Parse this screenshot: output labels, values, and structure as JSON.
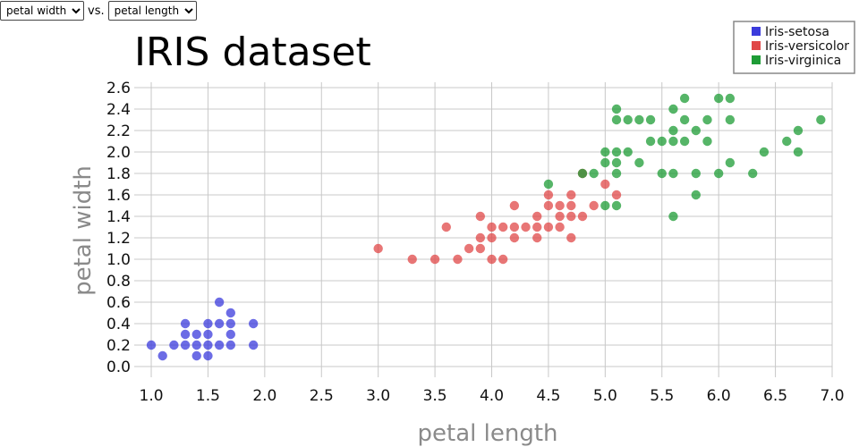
{
  "controls": {
    "y_select": {
      "selected": "petal width",
      "options": [
        "petal width"
      ]
    },
    "vs_label": "vs.",
    "x_select": {
      "selected": "petal length",
      "options": [
        "petal length"
      ]
    }
  },
  "chart_data": {
    "type": "scatter",
    "title": "IRIS dataset",
    "xlabel": "petal length",
    "ylabel": "petal width",
    "xlim": [
      0.85,
      7.0
    ],
    "ylim": [
      -0.1,
      2.65
    ],
    "xticks": [
      "1.0",
      "1.5",
      "2.0",
      "2.5",
      "3.0",
      "3.5",
      "4.0",
      "4.5",
      "5.0",
      "5.5",
      "6.0",
      "6.5",
      "7.0"
    ],
    "yticks": [
      "0.0",
      "0.2",
      "0.4",
      "0.6",
      "0.8",
      "1.0",
      "1.2",
      "1.4",
      "1.6",
      "1.8",
      "2.0",
      "2.2",
      "2.4",
      "2.6"
    ],
    "grid": true,
    "legend_position": "top-right",
    "series": [
      {
        "name": "Iris-setosa",
        "color": "#3b3bdc",
        "points": [
          [
            1.0,
            0.2
          ],
          [
            1.1,
            0.1
          ],
          [
            1.2,
            0.2
          ],
          [
            1.3,
            0.2
          ],
          [
            1.3,
            0.3
          ],
          [
            1.3,
            0.4
          ],
          [
            1.4,
            0.1
          ],
          [
            1.4,
            0.2
          ],
          [
            1.4,
            0.3
          ],
          [
            1.5,
            0.1
          ],
          [
            1.5,
            0.2
          ],
          [
            1.5,
            0.3
          ],
          [
            1.5,
            0.4
          ],
          [
            1.6,
            0.2
          ],
          [
            1.6,
            0.4
          ],
          [
            1.6,
            0.6
          ],
          [
            1.7,
            0.2
          ],
          [
            1.7,
            0.3
          ],
          [
            1.7,
            0.4
          ],
          [
            1.7,
            0.5
          ],
          [
            1.9,
            0.2
          ],
          [
            1.9,
            0.4
          ]
        ]
      },
      {
        "name": "Iris-versicolor",
        "color": "#e04848",
        "points": [
          [
            3.0,
            1.1
          ],
          [
            3.3,
            1.0
          ],
          [
            3.5,
            1.0
          ],
          [
            3.6,
            1.3
          ],
          [
            3.7,
            1.0
          ],
          [
            3.8,
            1.1
          ],
          [
            3.9,
            1.1
          ],
          [
            3.9,
            1.2
          ],
          [
            3.9,
            1.4
          ],
          [
            4.0,
            1.0
          ],
          [
            4.0,
            1.2
          ],
          [
            4.0,
            1.3
          ],
          [
            4.1,
            1.0
          ],
          [
            4.1,
            1.3
          ],
          [
            4.2,
            1.2
          ],
          [
            4.2,
            1.3
          ],
          [
            4.2,
            1.5
          ],
          [
            4.3,
            1.3
          ],
          [
            4.4,
            1.2
          ],
          [
            4.4,
            1.3
          ],
          [
            4.4,
            1.4
          ],
          [
            4.5,
            1.3
          ],
          [
            4.5,
            1.5
          ],
          [
            4.5,
            1.6
          ],
          [
            4.6,
            1.3
          ],
          [
            4.6,
            1.4
          ],
          [
            4.6,
            1.5
          ],
          [
            4.7,
            1.2
          ],
          [
            4.7,
            1.4
          ],
          [
            4.7,
            1.5
          ],
          [
            4.7,
            1.6
          ],
          [
            4.8,
            1.4
          ],
          [
            4.8,
            1.8
          ],
          [
            4.9,
            1.5
          ],
          [
            5.0,
            1.7
          ],
          [
            5.1,
            1.6
          ]
        ]
      },
      {
        "name": "Iris-virginica",
        "color": "#1e9c36",
        "points": [
          [
            4.5,
            1.7
          ],
          [
            4.8,
            1.8
          ],
          [
            4.9,
            1.8
          ],
          [
            5.0,
            1.5
          ],
          [
            5.0,
            1.9
          ],
          [
            5.0,
            2.0
          ],
          [
            5.1,
            1.5
          ],
          [
            5.1,
            1.8
          ],
          [
            5.1,
            1.9
          ],
          [
            5.1,
            2.0
          ],
          [
            5.1,
            2.3
          ],
          [
            5.1,
            2.4
          ],
          [
            5.2,
            2.0
          ],
          [
            5.2,
            2.3
          ],
          [
            5.3,
            1.9
          ],
          [
            5.3,
            2.3
          ],
          [
            5.4,
            2.1
          ],
          [
            5.4,
            2.3
          ],
          [
            5.5,
            1.8
          ],
          [
            5.5,
            2.1
          ],
          [
            5.6,
            1.4
          ],
          [
            5.6,
            1.8
          ],
          [
            5.6,
            2.1
          ],
          [
            5.6,
            2.2
          ],
          [
            5.6,
            2.4
          ],
          [
            5.7,
            2.1
          ],
          [
            5.7,
            2.3
          ],
          [
            5.7,
            2.5
          ],
          [
            5.8,
            1.6
          ],
          [
            5.8,
            1.8
          ],
          [
            5.8,
            2.2
          ],
          [
            5.9,
            2.1
          ],
          [
            5.9,
            2.3
          ],
          [
            6.0,
            1.8
          ],
          [
            6.0,
            2.5
          ],
          [
            6.1,
            1.9
          ],
          [
            6.1,
            2.3
          ],
          [
            6.1,
            2.5
          ],
          [
            6.3,
            1.8
          ],
          [
            6.4,
            2.0
          ],
          [
            6.6,
            2.1
          ],
          [
            6.7,
            2.0
          ],
          [
            6.7,
            2.2
          ],
          [
            6.9,
            2.3
          ]
        ]
      }
    ]
  }
}
